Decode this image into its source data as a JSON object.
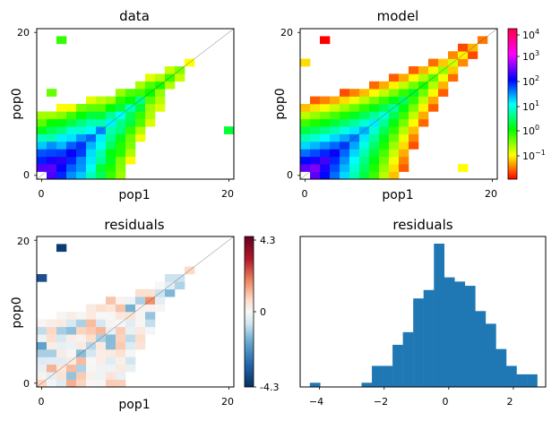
{
  "chart_data": [
    {
      "type": "heatmap",
      "title": "data",
      "xlabel": "pop1",
      "ylabel": "pop0",
      "x_ticks": [
        "0",
        "20"
      ],
      "y_ticks": [
        "0",
        "20"
      ],
      "xlim": [
        0,
        20
      ],
      "ylim": [
        0,
        20
      ],
      "color_scale": "log",
      "colormap": "hsv",
      "diagonal_line": true,
      "masked_cells": "white"
    },
    {
      "type": "heatmap",
      "title": "model",
      "xlabel": "pop1",
      "ylabel": "pop0",
      "x_ticks": [
        "0",
        "20"
      ],
      "y_ticks": [
        "0",
        "20"
      ],
      "xlim": [
        0,
        20
      ],
      "ylim": [
        0,
        20
      ],
      "color_scale": "log",
      "colormap": "hsv",
      "diagonal_line": true,
      "colorbar": {
        "ticks": [
          {
            "base": "10",
            "exp": "4"
          },
          {
            "base": "10",
            "exp": "3"
          },
          {
            "base": "10",
            "exp": "2"
          },
          {
            "base": "10",
            "exp": "1"
          },
          {
            "base": "10",
            "exp": "0"
          },
          {
            "base": "10",
            "exp": "−1"
          }
        ]
      }
    },
    {
      "type": "heatmap",
      "title": "residuals",
      "xlabel": "pop1",
      "ylabel": "pop0",
      "x_ticks": [
        "0",
        "20"
      ],
      "y_ticks": [
        "0",
        "20"
      ],
      "xlim": [
        0,
        20
      ],
      "ylim": [
        0,
        20
      ],
      "colormap": "RdBu_r",
      "diagonal_line": true,
      "colorbar": {
        "ticks": [
          "4.3",
          "0",
          "-4.3"
        ],
        "range": [
          -4.3,
          4.3
        ]
      }
    },
    {
      "type": "bar",
      "subtype": "histogram",
      "title": "residuals",
      "x_ticks": [
        "−4",
        "−2",
        "0",
        "2"
      ],
      "xlim": [
        -4.6,
        3.0
      ],
      "bin_width": 0.32,
      "color": "#1f77b4",
      "bins": [
        {
          "x0": -4.3,
          "count": 1
        },
        {
          "x0": -2.7,
          "count": 1
        },
        {
          "x0": -2.38,
          "count": 5
        },
        {
          "x0": -2.06,
          "count": 5
        },
        {
          "x0": -1.74,
          "count": 10
        },
        {
          "x0": -1.42,
          "count": 13
        },
        {
          "x0": -1.1,
          "count": 21
        },
        {
          "x0": -0.78,
          "count": 23
        },
        {
          "x0": -0.46,
          "count": 34
        },
        {
          "x0": -0.14,
          "count": 26
        },
        {
          "x0": 0.18,
          "count": 25
        },
        {
          "x0": 0.5,
          "count": 24
        },
        {
          "x0": 0.82,
          "count": 18
        },
        {
          "x0": 1.14,
          "count": 15
        },
        {
          "x0": 1.46,
          "count": 9
        },
        {
          "x0": 1.78,
          "count": 5
        },
        {
          "x0": 2.1,
          "count": 3
        },
        {
          "x0": 2.42,
          "count": 3
        }
      ]
    }
  ]
}
